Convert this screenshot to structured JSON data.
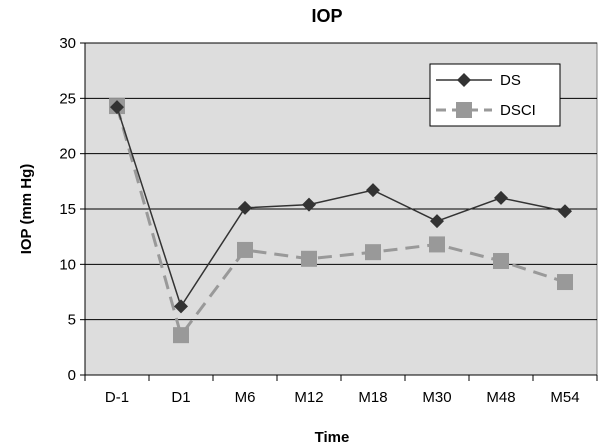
{
  "chart_data": {
    "type": "line",
    "title": "IOP",
    "xlabel": "Time",
    "ylabel": "IOP (mm Hg)",
    "categories": [
      "D-1",
      "D1",
      "M6",
      "M12",
      "M18",
      "M30",
      "M48",
      "M54"
    ],
    "ylim": [
      0,
      30
    ],
    "yticks": [
      0,
      5,
      10,
      15,
      20,
      25,
      30
    ],
    "grid": true,
    "legend_position": "top-right",
    "series": [
      {
        "name": "DS",
        "values": [
          24.2,
          6.2,
          15.1,
          15.4,
          16.7,
          13.9,
          16.0,
          14.8
        ],
        "color": "#333333",
        "marker": "diamond",
        "line_style": "solid"
      },
      {
        "name": "DSCI",
        "values": [
          24.3,
          3.6,
          11.3,
          10.5,
          11.1,
          11.8,
          10.3,
          8.4
        ],
        "color": "#999999",
        "marker": "square",
        "line_style": "dashed"
      }
    ],
    "plot_background": "#dddddd"
  }
}
